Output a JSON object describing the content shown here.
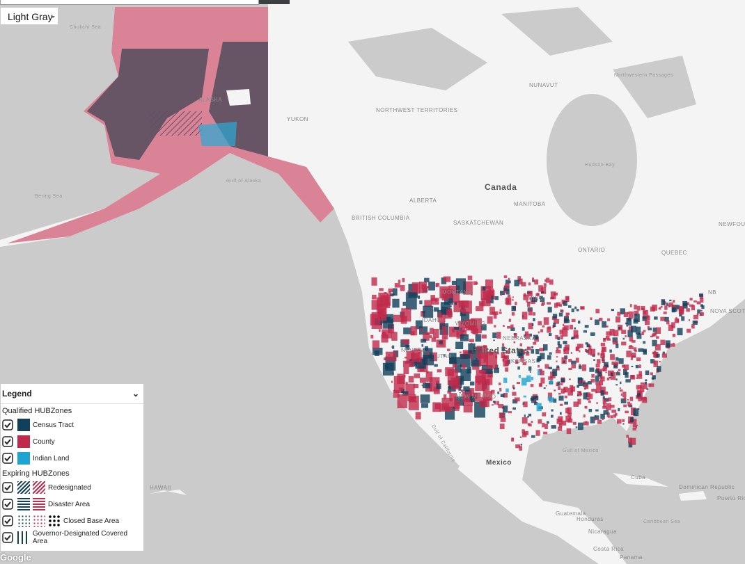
{
  "controls": {
    "basemap": "Light Gray",
    "attribution": "Google"
  },
  "map": {
    "labels": [
      "Chukchi Sea",
      "NUNAVUT",
      "Northwestern Passages",
      "ALASKA",
      "YUKON",
      "NORTHWEST TERRITORIES",
      "Canada",
      "Hudson Bay",
      "Gulf of Alaska",
      "Bering Sea",
      "ALBERTA",
      "MANITOBA",
      "BRITISH COLUMBIA",
      "SASKATCHEWAN",
      "ONTARIO",
      "QUEBEC",
      "NEWFOUNDLAND AND LAB",
      "NB",
      "NOVA SCOTIA",
      "MONTANA",
      "MINN",
      "IDAHO",
      "WYOMING",
      "NEBRASKA",
      "NEVADA",
      "UTAH",
      "United States",
      "KANSAS",
      "NEW MEXICO",
      "Gulf of California",
      "Gulf of Mexico",
      "Mexico",
      "Cuba",
      "Dominican Republic",
      "Puerto Rico",
      "Guatemala",
      "Honduras",
      "Nicaragua",
      "Caribbean Sea",
      "Costa Rica",
      "Panama",
      "HAWAII"
    ]
  },
  "legend": {
    "title": "Legend",
    "qualified": {
      "title": "Qualified HUBZones",
      "items": [
        "Census Tract",
        "County",
        "Indian Land"
      ]
    },
    "expiring": {
      "title": "Expiring HUBZones",
      "items": [
        "Redesignated",
        "Disaster Area",
        "Closed Base Area",
        "Governor-Designated Covered Area"
      ]
    }
  }
}
